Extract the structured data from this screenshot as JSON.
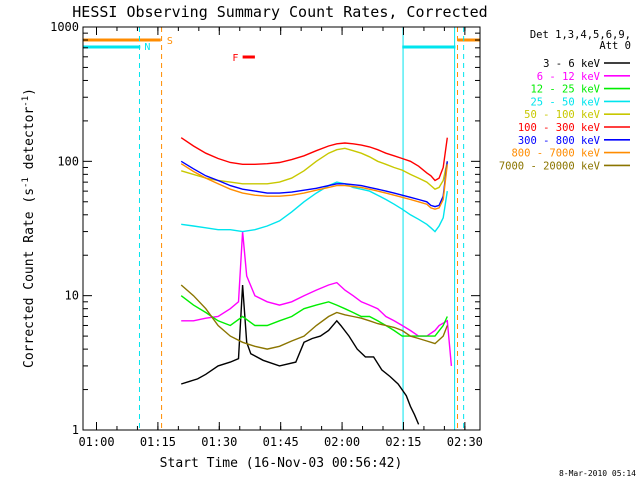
{
  "chart_data": {
    "type": "line",
    "title": "HESSI Observing Summary Count Rates, Corrected",
    "xlabel": "Start Time (16-Nov-03 00:56:42)",
    "ylabel_main": "Corrected Count Rate (s",
    "ylabel_sup1": "-1",
    "ylabel_mid": " detector",
    "ylabel_sup2": "-1",
    "ylabel_end": ")",
    "x_unit": "minutes after 00:56:42",
    "xlim": [
      0,
      97
    ],
    "ylim": [
      1,
      1000
    ],
    "yscale": "log",
    "xticks": [
      {
        "label": "01:00",
        "value": 3.3
      },
      {
        "label": "01:15",
        "value": 18.3
      },
      {
        "label": "01:30",
        "value": 33.3
      },
      {
        "label": "01:45",
        "value": 48.3
      },
      {
        "label": "02:00",
        "value": 63.3
      },
      {
        "label": "02:15",
        "value": 78.3
      },
      {
        "label": "02:30",
        "value": 93.3
      }
    ],
    "yticks": [
      {
        "label": "1",
        "value": 1
      },
      {
        "label": "10",
        "value": 10
      },
      {
        "label": "100",
        "value": 100
      },
      {
        "label": "1000",
        "value": 1000
      }
    ],
    "legend_header": [
      "Det 1,3,4,5,6,9,",
      "Att 0"
    ],
    "legend_placement": "right",
    "flags": [
      {
        "label": "N",
        "color": "#00e5ee"
      },
      {
        "label": "S",
        "color": "#ff8c00"
      },
      {
        "label": "F",
        "color": "#ff0000"
      }
    ],
    "series": [
      {
        "name": "3 - 6 keV",
        "color": "#000000",
        "points": [
          [
            24,
            2.2
          ],
          [
            26,
            2.3
          ],
          [
            28,
            2.4
          ],
          [
            30,
            2.6
          ],
          [
            33,
            3.0
          ],
          [
            36,
            3.2
          ],
          [
            38,
            3.4
          ],
          [
            39,
            12
          ],
          [
            40,
            4.5
          ],
          [
            41,
            3.7
          ],
          [
            44,
            3.3
          ],
          [
            48,
            3.0
          ],
          [
            52,
            3.2
          ],
          [
            54,
            4.5
          ],
          [
            56,
            4.8
          ],
          [
            58,
            5.0
          ],
          [
            60,
            5.5
          ],
          [
            62,
            6.5
          ],
          [
            63,
            6
          ],
          [
            65,
            5
          ],
          [
            67,
            4
          ],
          [
            69,
            3.5
          ],
          [
            71,
            3.5
          ],
          [
            73,
            2.8
          ],
          [
            75,
            2.5
          ],
          [
            77,
            2.2
          ],
          [
            79,
            1.8
          ],
          [
            80,
            1.5
          ],
          [
            81,
            1.3
          ],
          [
            82,
            1.1
          ]
        ]
      },
      {
        "name": "6 - 12 keV",
        "color": "#ff00ff",
        "points": [
          [
            24,
            6.5
          ],
          [
            27,
            6.5
          ],
          [
            30,
            6.8
          ],
          [
            33,
            7
          ],
          [
            36,
            8
          ],
          [
            38,
            9
          ],
          [
            39,
            30
          ],
          [
            40,
            14
          ],
          [
            42,
            10
          ],
          [
            45,
            9
          ],
          [
            48,
            8.5
          ],
          [
            51,
            9
          ],
          [
            54,
            10
          ],
          [
            57,
            11
          ],
          [
            60,
            12
          ],
          [
            62,
            12.5
          ],
          [
            64,
            11
          ],
          [
            66,
            10
          ],
          [
            68,
            9
          ],
          [
            70,
            8.5
          ],
          [
            72,
            8
          ],
          [
            74,
            7
          ],
          [
            76,
            6.5
          ],
          [
            78,
            6
          ],
          [
            80,
            5.5
          ],
          [
            82,
            5
          ],
          [
            84,
            5
          ],
          [
            86,
            5.5
          ],
          [
            87,
            6
          ],
          [
            89,
            6.5
          ],
          [
            90,
            3
          ]
        ]
      },
      {
        "name": "12 - 25 keV",
        "color": "#00ee00",
        "points": [
          [
            24,
            10
          ],
          [
            27,
            8.5
          ],
          [
            30,
            7.5
          ],
          [
            33,
            6.5
          ],
          [
            36,
            6
          ],
          [
            39,
            7
          ],
          [
            42,
            6
          ],
          [
            45,
            6
          ],
          [
            48,
            6.5
          ],
          [
            51,
            7
          ],
          [
            54,
            8
          ],
          [
            57,
            8.5
          ],
          [
            60,
            9
          ],
          [
            62,
            8.5
          ],
          [
            64,
            8
          ],
          [
            66,
            7.5
          ],
          [
            68,
            7
          ],
          [
            70,
            7
          ],
          [
            72,
            6.5
          ],
          [
            74,
            6
          ],
          [
            76,
            5.5
          ],
          [
            78,
            5
          ],
          [
            80,
            5
          ],
          [
            82,
            5
          ],
          [
            84,
            5
          ],
          [
            86,
            5
          ],
          [
            88,
            6
          ],
          [
            89,
            7
          ]
        ]
      },
      {
        "name": "25 - 50 keV",
        "color": "#00e5ee",
        "points": [
          [
            24,
            34
          ],
          [
            27,
            33
          ],
          [
            30,
            32
          ],
          [
            33,
            31
          ],
          [
            36,
            31
          ],
          [
            39,
            30
          ],
          [
            42,
            31
          ],
          [
            45,
            33
          ],
          [
            48,
            36
          ],
          [
            51,
            42
          ],
          [
            54,
            50
          ],
          [
            57,
            58
          ],
          [
            60,
            66
          ],
          [
            62,
            70
          ],
          [
            64,
            68
          ],
          [
            66,
            64
          ],
          [
            68,
            62
          ],
          [
            70,
            60
          ],
          [
            72,
            56
          ],
          [
            74,
            52
          ],
          [
            76,
            48
          ],
          [
            78,
            44
          ],
          [
            80,
            40
          ],
          [
            82,
            37
          ],
          [
            84,
            34
          ],
          [
            85,
            32
          ],
          [
            86,
            30
          ],
          [
            87,
            33
          ],
          [
            88,
            38
          ],
          [
            89,
            60
          ]
        ]
      },
      {
        "name": "50 - 100 keV",
        "color": "#c8c800",
        "points": [
          [
            24,
            85
          ],
          [
            27,
            80
          ],
          [
            30,
            75
          ],
          [
            33,
            72
          ],
          [
            36,
            70
          ],
          [
            39,
            68
          ],
          [
            42,
            68
          ],
          [
            45,
            68
          ],
          [
            48,
            70
          ],
          [
            51,
            75
          ],
          [
            54,
            85
          ],
          [
            57,
            100
          ],
          [
            60,
            115
          ],
          [
            62,
            122
          ],
          [
            64,
            125
          ],
          [
            66,
            120
          ],
          [
            68,
            115
          ],
          [
            70,
            108
          ],
          [
            72,
            100
          ],
          [
            74,
            95
          ],
          [
            76,
            90
          ],
          [
            78,
            86
          ],
          [
            80,
            80
          ],
          [
            82,
            75
          ],
          [
            84,
            70
          ],
          [
            85,
            66
          ],
          [
            86,
            62
          ],
          [
            87,
            64
          ],
          [
            88,
            72
          ],
          [
            89,
            100
          ]
        ]
      },
      {
        "name": "100 - 300 keV",
        "color": "#ff0000",
        "points": [
          [
            24,
            150
          ],
          [
            27,
            130
          ],
          [
            30,
            115
          ],
          [
            33,
            105
          ],
          [
            36,
            98
          ],
          [
            39,
            95
          ],
          [
            42,
            95
          ],
          [
            45,
            96
          ],
          [
            48,
            98
          ],
          [
            51,
            103
          ],
          [
            54,
            110
          ],
          [
            57,
            120
          ],
          [
            60,
            130
          ],
          [
            62,
            135
          ],
          [
            64,
            137
          ],
          [
            66,
            135
          ],
          [
            68,
            132
          ],
          [
            70,
            128
          ],
          [
            72,
            122
          ],
          [
            74,
            115
          ],
          [
            76,
            110
          ],
          [
            78,
            105
          ],
          [
            80,
            100
          ],
          [
            82,
            92
          ],
          [
            84,
            82
          ],
          [
            85,
            78
          ],
          [
            86,
            72
          ],
          [
            87,
            75
          ],
          [
            88,
            90
          ],
          [
            89,
            150
          ]
        ]
      },
      {
        "name": "300 - 800 keV",
        "color": "#0000ff",
        "points": [
          [
            24,
            100
          ],
          [
            27,
            88
          ],
          [
            30,
            78
          ],
          [
            33,
            72
          ],
          [
            36,
            66
          ],
          [
            39,
            62
          ],
          [
            42,
            60
          ],
          [
            45,
            58
          ],
          [
            48,
            58
          ],
          [
            51,
            59
          ],
          [
            54,
            61
          ],
          [
            57,
            63
          ],
          [
            60,
            66
          ],
          [
            62,
            68
          ],
          [
            64,
            68
          ],
          [
            66,
            67
          ],
          [
            68,
            66
          ],
          [
            70,
            64
          ],
          [
            72,
            62
          ],
          [
            74,
            60
          ],
          [
            76,
            58
          ],
          [
            78,
            56
          ],
          [
            80,
            54
          ],
          [
            82,
            52
          ],
          [
            84,
            50
          ],
          [
            85,
            47
          ],
          [
            86,
            46
          ],
          [
            87,
            47
          ],
          [
            88,
            55
          ],
          [
            89,
            100
          ]
        ]
      },
      {
        "name": "800 - 7000 keV",
        "color": "#ff8c00",
        "points": [
          [
            24,
            96
          ],
          [
            27,
            84
          ],
          [
            30,
            75
          ],
          [
            33,
            68
          ],
          [
            36,
            62
          ],
          [
            39,
            58
          ],
          [
            42,
            56
          ],
          [
            45,
            55
          ],
          [
            48,
            55
          ],
          [
            51,
            56
          ],
          [
            54,
            58
          ],
          [
            57,
            61
          ],
          [
            60,
            64
          ],
          [
            62,
            66
          ],
          [
            64,
            66
          ],
          [
            66,
            65
          ],
          [
            68,
            64
          ],
          [
            70,
            62
          ],
          [
            72,
            60
          ],
          [
            74,
            58
          ],
          [
            76,
            56
          ],
          [
            78,
            54
          ],
          [
            80,
            52
          ],
          [
            82,
            50
          ],
          [
            84,
            48
          ],
          [
            85,
            45
          ],
          [
            86,
            44
          ],
          [
            87,
            45
          ],
          [
            88,
            52
          ],
          [
            89,
            95
          ]
        ]
      },
      {
        "name": "7000 - 20000 keV",
        "color": "#8b7500",
        "points": [
          [
            24,
            12
          ],
          [
            27,
            10
          ],
          [
            30,
            8
          ],
          [
            33,
            6
          ],
          [
            36,
            5
          ],
          [
            39,
            4.5
          ],
          [
            42,
            4.2
          ],
          [
            45,
            4.0
          ],
          [
            48,
            4.2
          ],
          [
            51,
            4.6
          ],
          [
            54,
            5.0
          ],
          [
            57,
            6
          ],
          [
            60,
            7
          ],
          [
            62,
            7.5
          ],
          [
            64,
            7.2
          ],
          [
            66,
            7
          ],
          [
            68,
            6.8
          ],
          [
            70,
            6.5
          ],
          [
            72,
            6.2
          ],
          [
            74,
            6
          ],
          [
            76,
            5.8
          ],
          [
            78,
            5.5
          ],
          [
            80,
            5
          ],
          [
            82,
            4.8
          ],
          [
            84,
            4.6
          ],
          [
            86,
            4.4
          ],
          [
            88,
            5
          ],
          [
            89,
            6
          ]
        ]
      }
    ]
  },
  "footer": {
    "timestamp": "8-Mar-2010 05:14"
  }
}
